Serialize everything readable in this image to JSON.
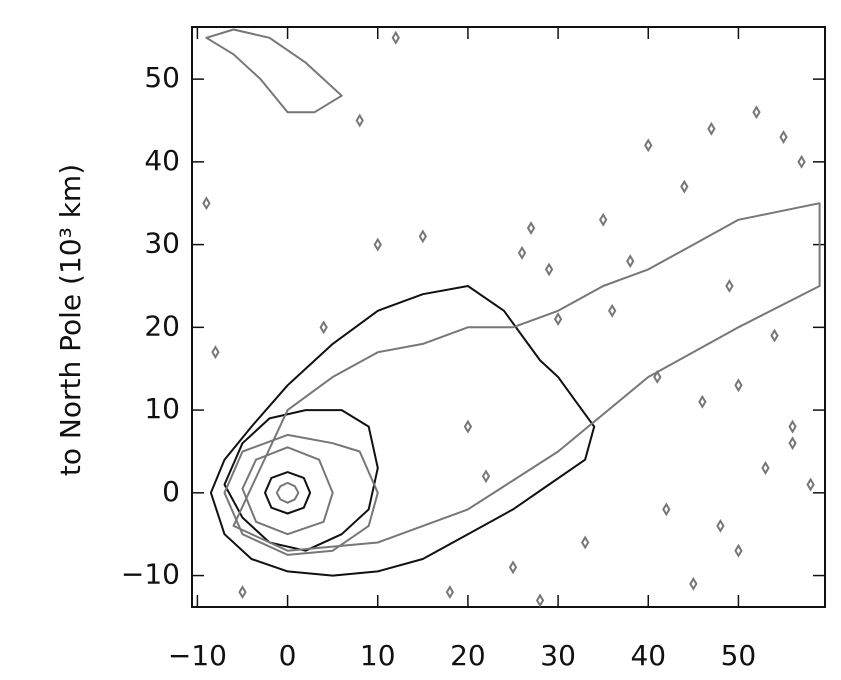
{
  "chart_data": {
    "type": "contour",
    "ylabel": "to North Pole (10³ km)",
    "xlim": [
      -10.6,
      59.6
    ],
    "ylim": [
      -13.8,
      56.3
    ],
    "xticks": [
      {
        "value": -10,
        "label": "−10"
      },
      0,
      10,
      20,
      30,
      40,
      50
    ],
    "yticks": [
      {
        "value": -10,
        "label": "−10"
      },
      0,
      10,
      20,
      30,
      40,
      50
    ],
    "contours": [
      {
        "color": "#111111",
        "x": [
          -8.5,
          -7,
          -4,
          0,
          5,
          10,
          15,
          20,
          25,
          29,
          33,
          34,
          32,
          30,
          28,
          26,
          24,
          20,
          15,
          10,
          5,
          0,
          -4,
          -7
        ],
        "y": [
          0,
          -5,
          -8,
          -9.5,
          -10,
          -9.5,
          -8,
          -5,
          -2,
          1,
          4,
          8,
          11,
          14,
          16,
          19,
          22,
          25,
          24,
          22,
          18,
          13,
          8,
          4
        ]
      },
      {
        "color": "#111111",
        "x": [
          -7,
          -5,
          -2,
          2,
          6,
          9,
          10,
          9,
          6,
          2,
          -2,
          -5
        ],
        "y": [
          1,
          6,
          9,
          10,
          10,
          8,
          3,
          -2,
          -5,
          -7,
          -6,
          -3
        ]
      },
      {
        "color": "#111111",
        "x": [
          -2.5,
          -1.8,
          0,
          1.8,
          2.5,
          1.8,
          0,
          -1.8
        ],
        "y": [
          0,
          1.8,
          2.5,
          1.8,
          0,
          -1.8,
          -2.5,
          -1.8
        ]
      },
      {
        "color": "#777777",
        "x": [
          -1.2,
          -0.8,
          0,
          0.8,
          1.2,
          0.8,
          0,
          -0.8
        ],
        "y": [
          0,
          0.8,
          1.2,
          0.8,
          0,
          -0.8,
          -1.2,
          -0.8
        ]
      },
      {
        "color": "#777777",
        "x": [
          -5,
          -3.5,
          0,
          3.5,
          5,
          4,
          0,
          -3.5
        ],
        "y": [
          0.5,
          4,
          5.5,
          4,
          0,
          -3.5,
          -5,
          -3.5
        ]
      },
      {
        "color": "#777777",
        "x": [
          -7,
          -5,
          0,
          5,
          8,
          10,
          9,
          5,
          0,
          -5
        ],
        "y": [
          0,
          5,
          7,
          6,
          5,
          0,
          -4,
          -7,
          -7.5,
          -5
        ]
      },
      {
        "color": "#777777",
        "x": [
          -6,
          0,
          10,
          20,
          30,
          40,
          50,
          59,
          59,
          50,
          45,
          40,
          35,
          30,
          25,
          20,
          15,
          10,
          5,
          0,
          -3
        ],
        "y": [
          -4,
          -7,
          -6,
          -2,
          5,
          14,
          20,
          25,
          35,
          33,
          30,
          27,
          25,
          22,
          20,
          20,
          18,
          17,
          14,
          10,
          3
        ]
      },
      {
        "color": "#777777",
        "x": [
          -9,
          -6,
          -3,
          0,
          3,
          6,
          2,
          -2,
          -6
        ],
        "y": [
          55,
          53,
          50,
          46,
          46,
          48,
          52,
          55,
          56
        ]
      }
    ],
    "spots": {
      "color": "#777777",
      "x": [
        -8,
        15,
        8,
        22,
        40,
        44,
        47,
        52,
        55,
        57,
        38,
        35,
        48,
        50,
        45,
        53,
        56,
        28,
        42,
        12,
        30,
        -9,
        4,
        18,
        25,
        33,
        46,
        50,
        56,
        58,
        26,
        36,
        41,
        27,
        49,
        54,
        -5,
        10,
        20,
        29
      ],
      "y": [
        17,
        31,
        45,
        2,
        42,
        37,
        44,
        46,
        43,
        40,
        28,
        33,
        -4,
        -7,
        -11,
        3,
        6,
        -13,
        -2,
        55,
        21,
        35,
        20,
        -12,
        -9,
        -6,
        11,
        13,
        8,
        1,
        29,
        22,
        14,
        32,
        25,
        19,
        -12,
        30,
        8,
        27
      ]
    }
  }
}
